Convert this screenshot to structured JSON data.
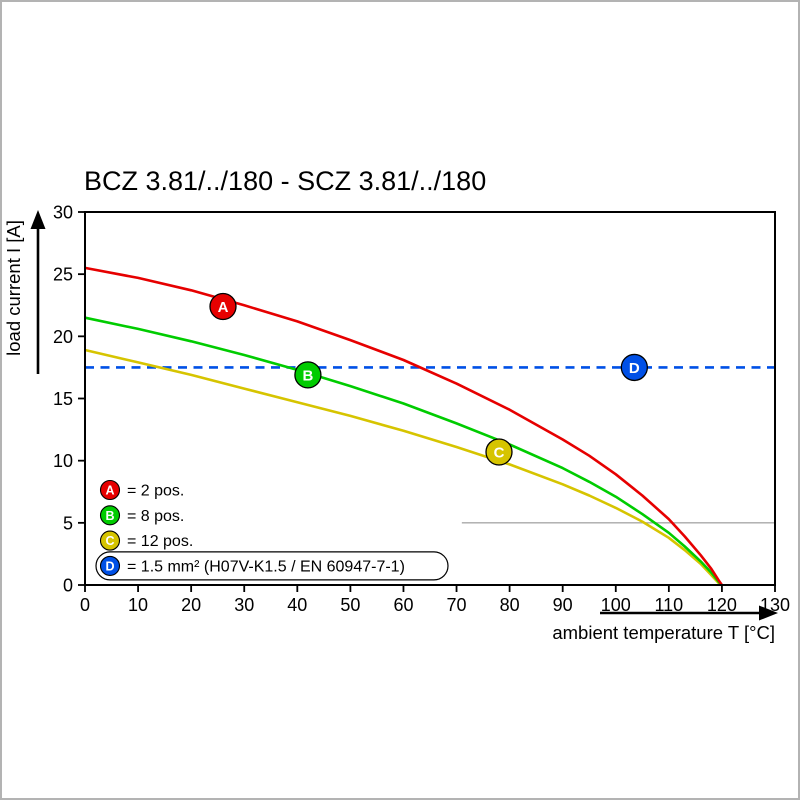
{
  "chart_data": {
    "type": "line",
    "title": "BCZ 3.81/../180 - SCZ 3.81/../180",
    "xlabel": "ambient temperature T [°C]",
    "ylabel": "load current I [A]",
    "xlim": [
      0,
      130
    ],
    "ylim": [
      0,
      30
    ],
    "x_ticks": [
      0,
      10,
      20,
      30,
      40,
      50,
      60,
      70,
      80,
      90,
      100,
      110,
      120,
      130
    ],
    "y_ticks": [
      0,
      5,
      10,
      15,
      20,
      25,
      30
    ],
    "grid": "off",
    "partial_gridline": {
      "y": 5,
      "x_start": 71,
      "x_end": 130
    },
    "series": [
      {
        "id": "A",
        "name": "2 pos.",
        "color": "#e60000",
        "dashed": false,
        "points": [
          [
            0,
            25.5
          ],
          [
            10,
            24.7
          ],
          [
            20,
            23.7
          ],
          [
            30,
            22.5
          ],
          [
            40,
            21.2
          ],
          [
            50,
            19.7
          ],
          [
            60,
            18.1
          ],
          [
            70,
            16.2
          ],
          [
            80,
            14.1
          ],
          [
            90,
            11.7
          ],
          [
            95,
            10.4
          ],
          [
            100,
            8.9
          ],
          [
            105,
            7.2
          ],
          [
            110,
            5.3
          ],
          [
            113,
            3.9
          ],
          [
            116,
            2.4
          ],
          [
            118,
            1.3
          ],
          [
            119.5,
            0.3
          ],
          [
            120,
            0
          ]
        ]
      },
      {
        "id": "B",
        "name": "8 pos.",
        "color": "#00cc00",
        "dashed": false,
        "points": [
          [
            0,
            21.5
          ],
          [
            10,
            20.6
          ],
          [
            20,
            19.6
          ],
          [
            30,
            18.5
          ],
          [
            40,
            17.3
          ],
          [
            50,
            16.0
          ],
          [
            60,
            14.6
          ],
          [
            70,
            13.0
          ],
          [
            80,
            11.3
          ],
          [
            90,
            9.4
          ],
          [
            95,
            8.3
          ],
          [
            100,
            7.1
          ],
          [
            105,
            5.7
          ],
          [
            110,
            4.2
          ],
          [
            113,
            3.1
          ],
          [
            116,
            1.9
          ],
          [
            118,
            1.0
          ],
          [
            119.5,
            0.2
          ],
          [
            120,
            0
          ]
        ]
      },
      {
        "id": "C",
        "name": "12 pos.",
        "color": "#d6c400",
        "dashed": false,
        "points": [
          [
            0,
            18.9
          ],
          [
            10,
            17.9
          ],
          [
            20,
            16.9
          ],
          [
            30,
            15.8
          ],
          [
            40,
            14.7
          ],
          [
            50,
            13.6
          ],
          [
            60,
            12.4
          ],
          [
            70,
            11.1
          ],
          [
            80,
            9.7
          ],
          [
            90,
            8.1
          ],
          [
            95,
            7.2
          ],
          [
            100,
            6.2
          ],
          [
            105,
            5.1
          ],
          [
            110,
            3.8
          ],
          [
            113,
            2.8
          ],
          [
            116,
            1.7
          ],
          [
            118,
            0.8
          ],
          [
            119.5,
            0.1
          ],
          [
            120,
            0
          ]
        ]
      },
      {
        "id": "D",
        "name": "1.5 mm² (H07V-K1.5 / EN 60947-7-1)",
        "color": "#0050e6",
        "dashed": true,
        "points": [
          [
            0,
            17.5
          ],
          [
            130,
            17.5
          ]
        ]
      }
    ],
    "markers": [
      {
        "label": "A",
        "x": 26,
        "y": 22.4,
        "color": "#e60000"
      },
      {
        "label": "B",
        "x": 42,
        "y": 16.9,
        "color": "#00cc00"
      },
      {
        "label": "C",
        "x": 78,
        "y": 10.7,
        "color": "#d6c400"
      },
      {
        "label": "D",
        "x": 103.5,
        "y": 17.5,
        "color": "#0050e6"
      }
    ],
    "legend": [
      {
        "label": "A",
        "text": "= 2 pos.",
        "color": "#e60000",
        "boxed": false
      },
      {
        "label": "B",
        "text": "= 8 pos.",
        "color": "#00cc00",
        "boxed": false
      },
      {
        "label": "C",
        "text": "= 12 pos.",
        "color": "#d6c400",
        "boxed": false
      },
      {
        "label": "D",
        "text": "= 1.5 mm² (H07V-K1.5 / EN 60947-7-1)",
        "color": "#0050e6",
        "boxed": true
      }
    ],
    "legend_position": "lower-left-inside"
  }
}
